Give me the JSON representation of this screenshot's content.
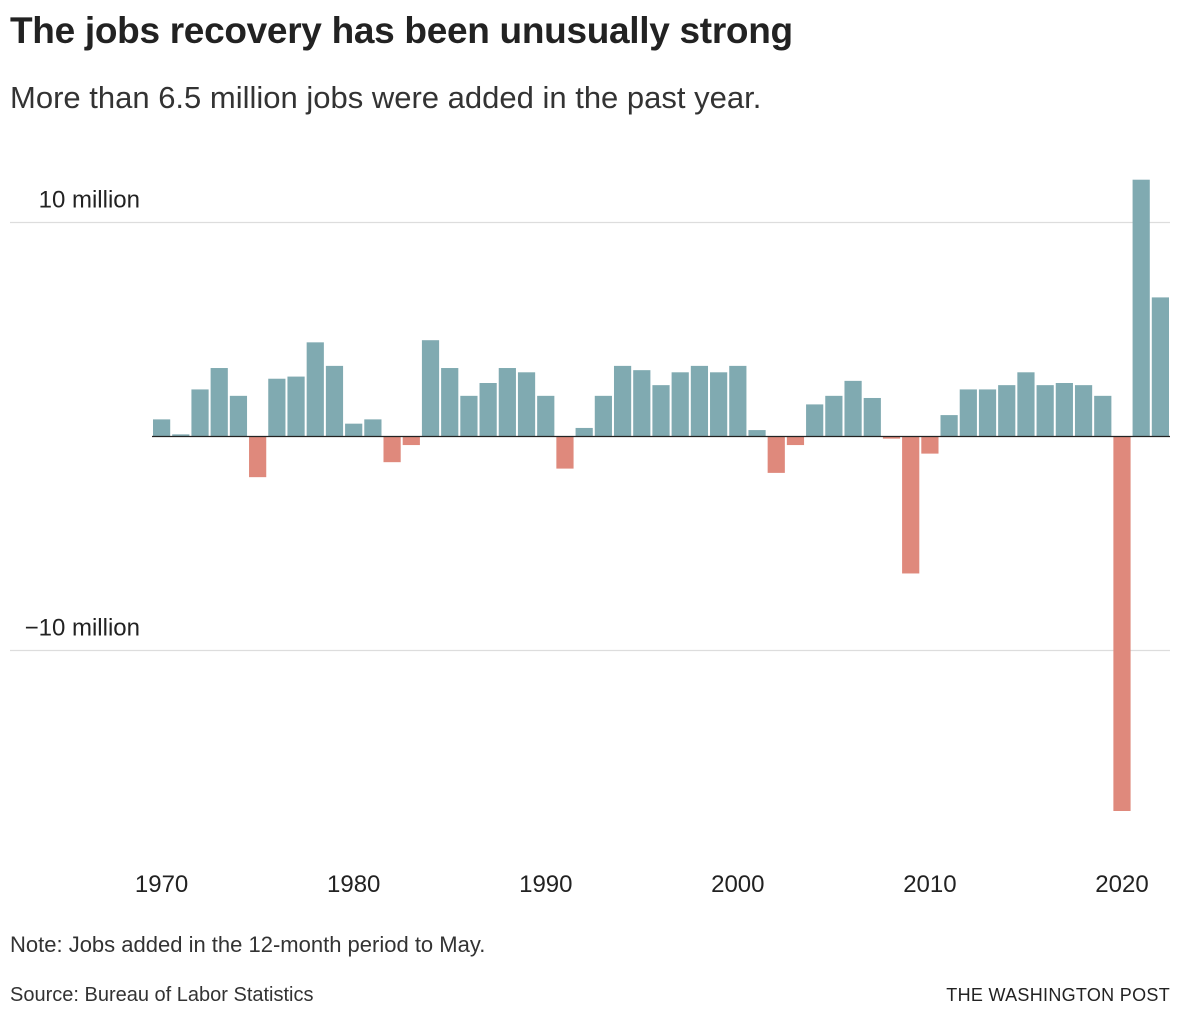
{
  "header": {
    "title": "The jobs recovery has been unusually strong",
    "subtitle": "More than 6.5 million jobs were added in the past year."
  },
  "footer": {
    "note": "Note: Jobs added in the 12-month period to May.",
    "source": "Source: Bureau of Labor Statistics",
    "brand": "THE WASHINGTON POST"
  },
  "colors": {
    "positive": "#80aab1",
    "negative": "#df897c",
    "gridline": "#dddddd",
    "zeroline": "#222222",
    "text": "#222222"
  },
  "chart_data": {
    "type": "bar",
    "title": "The jobs recovery has been unusually strong",
    "subtitle": "More than 6.5 million jobs were added in the past year.",
    "xlabel": "",
    "ylabel": "",
    "unit": "million jobs",
    "ylim": [
      -17.5,
      12.2
    ],
    "yticks": [
      {
        "value": 10,
        "label": "10 million"
      },
      {
        "value": -10,
        "label": "−10 million"
      }
    ],
    "xticks": [
      {
        "value": 1970,
        "label": "1970"
      },
      {
        "value": 1980,
        "label": "1980"
      },
      {
        "value": 1990,
        "label": "1990"
      },
      {
        "value": 2000,
        "label": "2000"
      },
      {
        "value": 2010,
        "label": "2010"
      },
      {
        "value": 2020,
        "label": "2020"
      }
    ],
    "grid": true,
    "categories": [
      1970,
      1971,
      1972,
      1973,
      1974,
      1975,
      1976,
      1977,
      1978,
      1979,
      1980,
      1981,
      1982,
      1983,
      1984,
      1985,
      1986,
      1987,
      1988,
      1989,
      1990,
      1991,
      1992,
      1993,
      1994,
      1995,
      1996,
      1997,
      1998,
      1999,
      2000,
      2001,
      2002,
      2003,
      2004,
      2005,
      2006,
      2007,
      2008,
      2009,
      2010,
      2011,
      2012,
      2013,
      2014,
      2015,
      2016,
      2017,
      2018,
      2019,
      2020,
      2021,
      2022
    ],
    "values": [
      0.8,
      0.1,
      2.2,
      3.2,
      1.9,
      -1.9,
      2.7,
      2.8,
      4.4,
      3.3,
      0.6,
      0.8,
      -1.2,
      -0.4,
      4.5,
      3.2,
      1.9,
      2.5,
      3.2,
      3.0,
      1.9,
      -1.5,
      0.4,
      1.9,
      3.3,
      3.1,
      2.4,
      3.0,
      3.3,
      3.0,
      3.3,
      0.3,
      -1.7,
      -0.4,
      1.5,
      1.9,
      2.6,
      1.8,
      -0.1,
      -6.4,
      -0.8,
      1.0,
      2.2,
      2.2,
      2.4,
      3.0,
      2.4,
      2.5,
      2.4,
      1.9,
      -17.5,
      12.0,
      6.5
    ]
  }
}
